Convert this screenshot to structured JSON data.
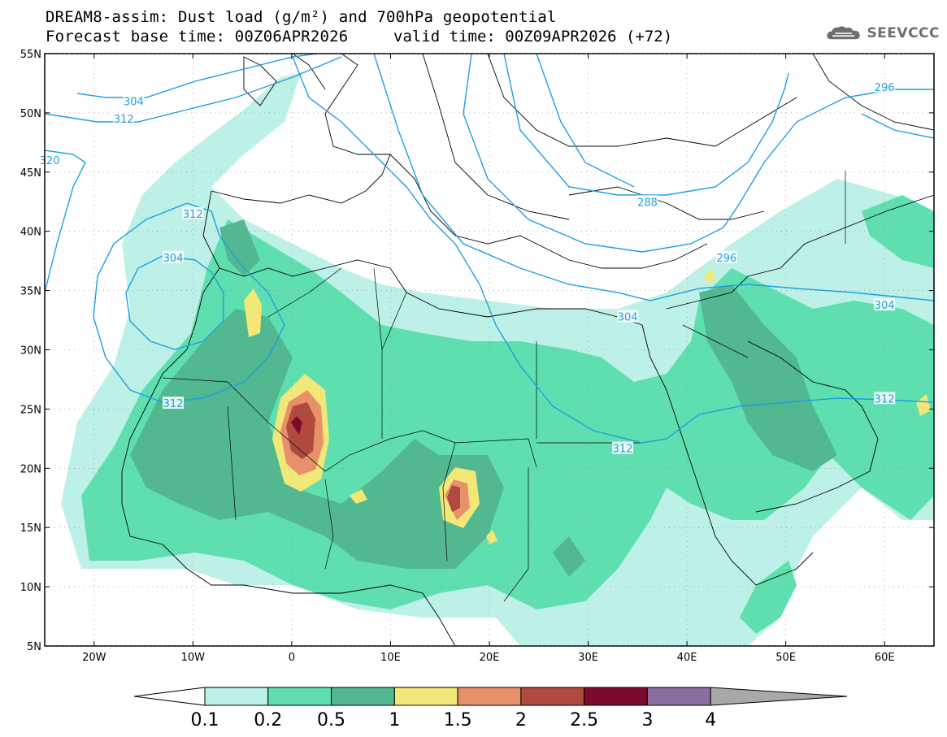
{
  "header": {
    "title_line1": "DREAM8-assim: Dust load (g/m²) and 700hPa geopotential",
    "title_line2": "Forecast base time: 00Z06APR2026",
    "valid_time": "valid time: 00Z09APR2026 (+72)",
    "logo_text": "SEEVCCC",
    "logo_icon": "cloud-logo-icon"
  },
  "map": {
    "lon_range": [
      -25,
      65
    ],
    "lat_range": [
      5,
      55
    ],
    "lon_ticks": [
      "20W",
      "10W",
      "0",
      "10E",
      "20E",
      "30E",
      "40E",
      "50E",
      "60E"
    ],
    "lon_tick_values": [
      -20,
      -10,
      0,
      10,
      20,
      30,
      40,
      50,
      60
    ],
    "lat_ticks": [
      "5N",
      "10N",
      "15N",
      "20N",
      "25N",
      "30N",
      "35N",
      "40N",
      "45N",
      "50N",
      "55N"
    ],
    "lat_tick_values": [
      5,
      10,
      15,
      20,
      25,
      30,
      35,
      40,
      45,
      50,
      55
    ],
    "contour_color": "#1f9fe0",
    "contour_labels": [
      {
        "text": "304",
        "lon": -16,
        "lat": 51
      },
      {
        "text": "312",
        "lon": -17,
        "lat": 49.5
      },
      {
        "text": "320",
        "lon": -24.5,
        "lat": 46
      },
      {
        "text": "312",
        "lon": -10,
        "lat": 41.5
      },
      {
        "text": "304",
        "lon": -12,
        "lat": 37.8
      },
      {
        "text": "312",
        "lon": -12,
        "lat": 25.5
      },
      {
        "text": "288",
        "lon": 36,
        "lat": 42.5
      },
      {
        "text": "296",
        "lon": 44,
        "lat": 37.8
      },
      {
        "text": "304",
        "lon": 34,
        "lat": 32.8
      },
      {
        "text": "312",
        "lon": 33.5,
        "lat": 21.7
      },
      {
        "text": "304",
        "lon": 60,
        "lat": 33.8
      },
      {
        "text": "312",
        "lon": 60,
        "lat": 25.9
      },
      {
        "text": "296",
        "lon": 60,
        "lat": 52.2
      }
    ]
  },
  "colorbar": {
    "labels": [
      "0.1",
      "0.2",
      "0.5",
      "1",
      "1.5",
      "2",
      "2.5",
      "3",
      "4"
    ],
    "colors": [
      "#bdf0e6",
      "#5fdfb0",
      "#52b890",
      "#f2e878",
      "#e8906a",
      "#b04a3e",
      "#7d0a2c",
      "#8a6ea0",
      "#a8a8a8"
    ]
  }
}
